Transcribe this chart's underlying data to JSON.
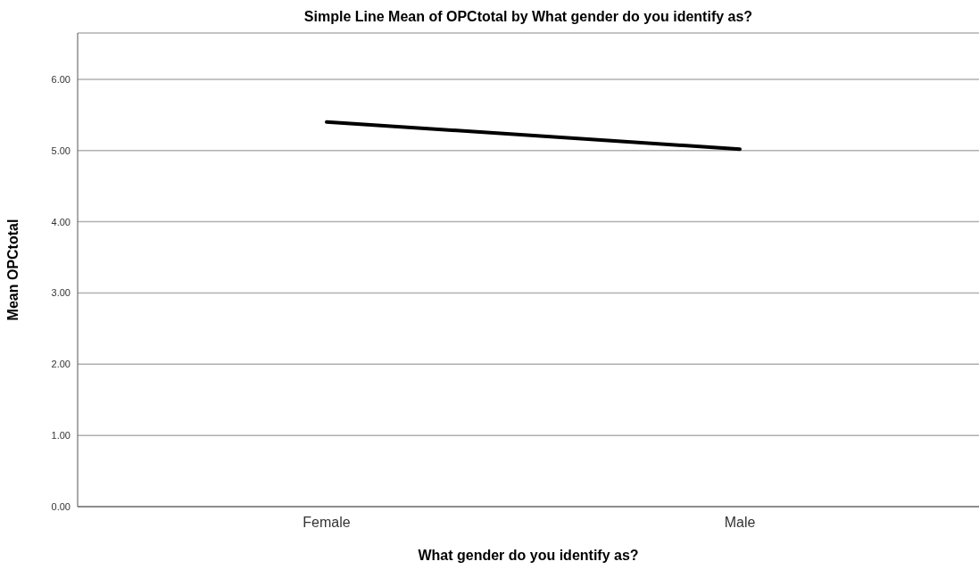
{
  "chart_data": {
    "type": "line",
    "title": "Simple Line Mean of OPCtotal by What gender do you identify as?",
    "xlabel": "What gender do you identify as?",
    "ylabel": "Mean OPCtotal",
    "categories": [
      "Female",
      "Male"
    ],
    "series": [
      {
        "color": "#000000",
        "values": [
          5.4,
          5.02
        ]
      }
    ],
    "ylim": [
      0,
      6.65
    ],
    "yticks": [
      {
        "value": 0,
        "label": "0.00"
      },
      {
        "value": 1,
        "label": "1.00"
      },
      {
        "value": 2,
        "label": "2.00"
      },
      {
        "value": 3,
        "label": "3.00"
      },
      {
        "value": 4,
        "label": "4.00"
      },
      {
        "value": 5,
        "label": "5.00"
      },
      {
        "value": 6,
        "label": "6.00"
      }
    ],
    "grid": "y",
    "legend": false,
    "marker": "none",
    "line_style": "solid"
  }
}
